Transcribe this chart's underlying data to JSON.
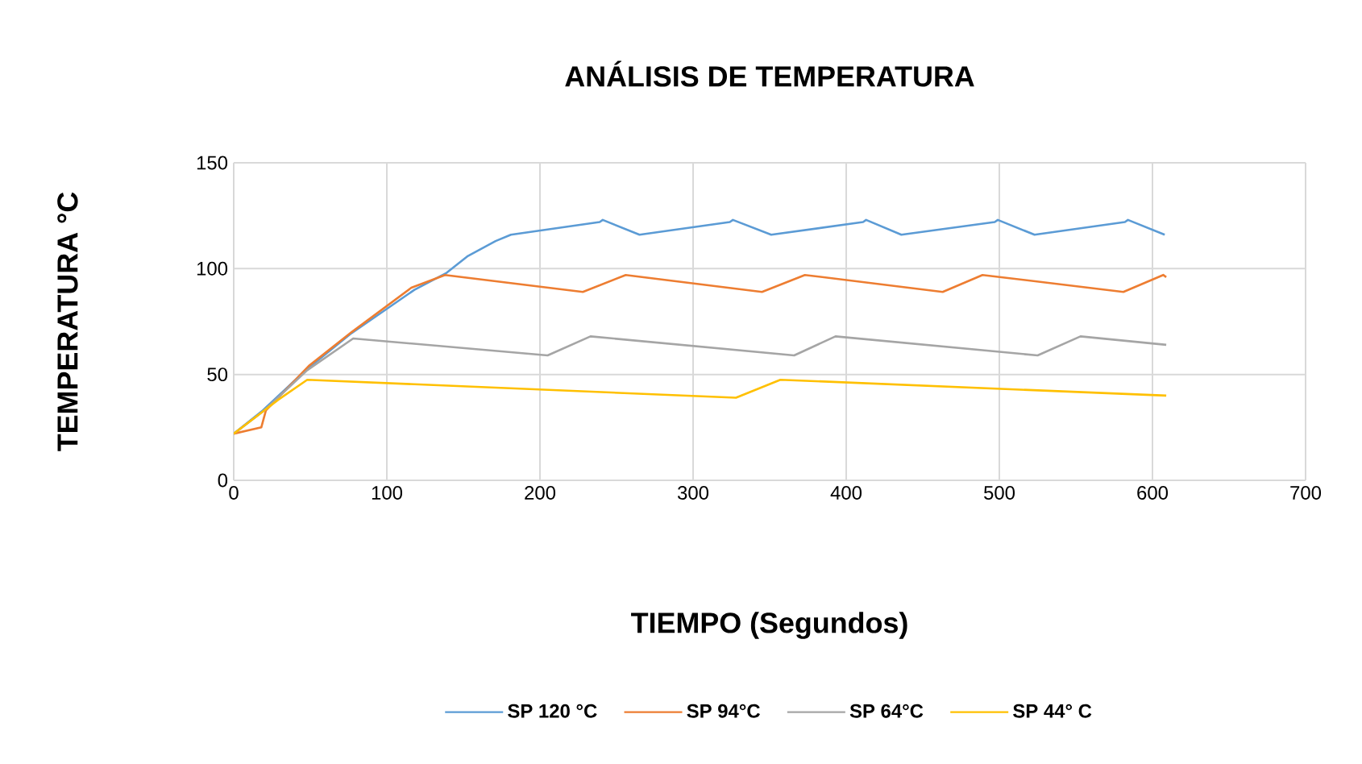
{
  "chart_data": {
    "type": "line",
    "title": "ANÁLISIS DE TEMPERATURA",
    "xlabel": "TIEMPO (Segundos)",
    "ylabel": "TEMPERATURA °C",
    "xlim": [
      0,
      700
    ],
    "xticks": [
      0,
      100,
      200,
      300,
      400,
      500,
      600,
      700
    ],
    "ylim": [
      0,
      150
    ],
    "yticks": [
      0,
      50,
      100,
      150
    ],
    "grid": true,
    "legend": "bottom",
    "line_style": "solid",
    "series": [
      {
        "name": "SP 120 °C",
        "color": "#5b9bd5",
        "x": [
          0,
          19,
          47,
          76,
          118,
          139,
          153,
          171,
          181,
          239,
          241,
          265,
          324,
          326,
          351,
          411,
          413,
          436,
          497,
          499,
          523,
          582,
          584,
          608
        ],
        "values": [
          22,
          33,
          52,
          69,
          90,
          98,
          106,
          113,
          116,
          122,
          123,
          116,
          122,
          123,
          116,
          122,
          123,
          116,
          122,
          123,
          116,
          122,
          123,
          116
        ]
      },
      {
        "name": "SP 94°C",
        "color": "#ed7d31",
        "x": [
          0,
          18,
          21,
          49,
          77,
          116,
          138,
          228,
          256,
          345,
          373,
          463,
          489,
          581,
          607,
          609
        ],
        "values": [
          22,
          25,
          33,
          54,
          70,
          91,
          97,
          89,
          97,
          89,
          97,
          89,
          97,
          89,
          97,
          96
        ]
      },
      {
        "name": "SP 64°C",
        "color": "#a5a5a5",
        "x": [
          0,
          20,
          48,
          78,
          205,
          233,
          366,
          393,
          525,
          553,
          609
        ],
        "values": [
          22,
          33,
          52,
          67,
          59,
          68,
          59,
          68,
          59,
          68,
          64
        ]
      },
      {
        "name": "SP 44° C",
        "color": "#ffc000",
        "x": [
          0,
          29,
          48,
          328,
          357,
          609
        ],
        "values": [
          22,
          38,
          47.5,
          39,
          47.5,
          40
        ]
      }
    ]
  }
}
